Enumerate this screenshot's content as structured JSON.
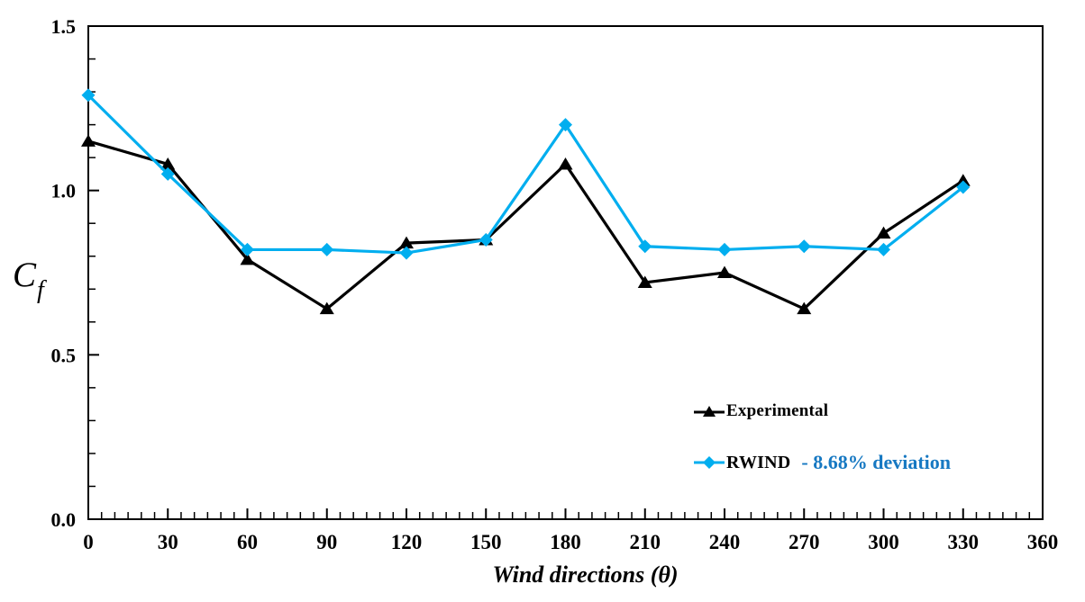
{
  "chart_data": {
    "type": "line",
    "title": "",
    "xlabel": "Wind directions (θ)",
    "ylabel_base": "C",
    "ylabel_sub": "f",
    "x": [
      0,
      30,
      60,
      90,
      120,
      150,
      180,
      210,
      240,
      270,
      300,
      330
    ],
    "series": [
      {
        "name": "Experimental",
        "color": "#000000",
        "marker": "triangle",
        "values": [
          1.15,
          1.08,
          0.79,
          0.64,
          0.84,
          0.85,
          1.08,
          0.72,
          0.75,
          0.64,
          0.87,
          1.03
        ]
      },
      {
        "name": "RWIND",
        "color": "#00AEEF",
        "marker": "diamond",
        "values": [
          1.29,
          1.05,
          0.82,
          0.82,
          0.81,
          0.85,
          1.2,
          0.83,
          0.82,
          0.83,
          0.82,
          1.01
        ],
        "annotation": "- 8.68% deviation",
        "annotation_color": "#1678C2"
      }
    ],
    "xlim": [
      0,
      360
    ],
    "ylim": [
      0,
      1.5
    ],
    "x_major_step": 30,
    "x_minor_step": 5,
    "y_major_step": 0.5,
    "y_minor_step": 0.1,
    "x_tick_labels": [
      "0",
      "30",
      "60",
      "90",
      "120",
      "150",
      "180",
      "210",
      "240",
      "270",
      "300",
      "330",
      "360"
    ],
    "y_tick_labels": [
      "0.0",
      "0.5",
      "1.0",
      "1.5"
    ],
    "grid": false,
    "plot_border": "box",
    "tick_direction": "inside",
    "legend_position": "inside-lower-right",
    "axis_color": "#000000"
  }
}
